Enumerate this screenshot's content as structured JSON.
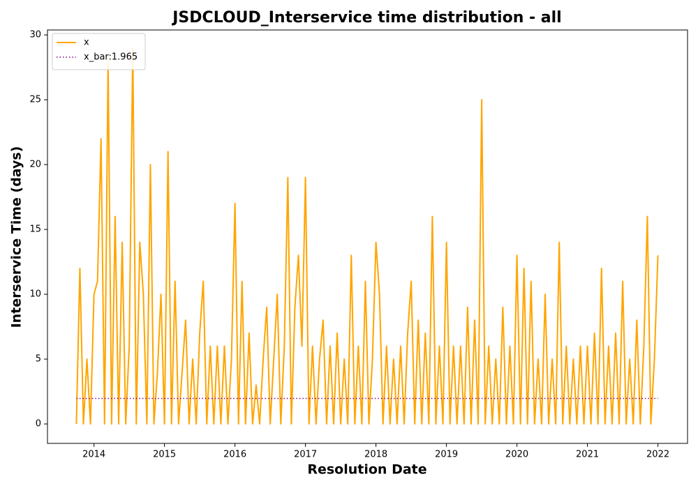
{
  "chart_data": {
    "type": "line",
    "title": "JSDCLOUD_Interservice time distribution - all",
    "x_label": "Resolution Date",
    "y_label": "Interservice Time (days)",
    "xlim": [
      2013.34,
      2022.42
    ],
    "xticks": [
      2014,
      2015,
      2016,
      2017,
      2018,
      2019,
      2020,
      2021,
      2022
    ],
    "ylim": [
      -1.5,
      30.38
    ],
    "yticks": [
      0,
      5,
      10,
      15,
      20,
      25,
      30
    ],
    "legend": "upper left",
    "series": [
      {
        "name": "x",
        "color": "#ffa500",
        "style": "solid",
        "x": [
          2013.75,
          2013.8,
          2013.85,
          2013.9,
          2013.95,
          2014.0,
          2014.05,
          2014.1,
          2014.15,
          2014.2,
          2014.25,
          2014.3,
          2014.35,
          2014.4,
          2014.45,
          2014.5,
          2014.55,
          2014.6,
          2014.65,
          2014.7,
          2014.75,
          2014.8,
          2014.85,
          2014.9,
          2014.95,
          2015.0,
          2015.05,
          2015.1,
          2015.15,
          2015.2,
          2015.25,
          2015.3,
          2015.35,
          2015.4,
          2015.45,
          2015.5,
          2015.55,
          2015.6,
          2015.65,
          2015.7,
          2015.75,
          2015.8,
          2015.85,
          2015.9,
          2015.95,
          2016.0,
          2016.05,
          2016.1,
          2016.15,
          2016.2,
          2016.25,
          2016.3,
          2016.35,
          2016.4,
          2016.45,
          2016.5,
          2016.55,
          2016.6,
          2016.65,
          2016.7,
          2016.75,
          2016.8,
          2016.85,
          2016.9,
          2016.95,
          2017.0,
          2017.05,
          2017.1,
          2017.15,
          2017.2,
          2017.25,
          2017.3,
          2017.35,
          2017.4,
          2017.45,
          2017.5,
          2017.55,
          2017.6,
          2017.65,
          2017.7,
          2017.75,
          2017.8,
          2017.85,
          2017.9,
          2017.95,
          2018.0,
          2018.05,
          2018.1,
          2018.15,
          2018.2,
          2018.25,
          2018.3,
          2018.35,
          2018.4,
          2018.45,
          2018.5,
          2018.55,
          2018.6,
          2018.65,
          2018.7,
          2018.75,
          2018.8,
          2018.85,
          2018.9,
          2018.95,
          2019.0,
          2019.05,
          2019.1,
          2019.15,
          2019.2,
          2019.25,
          2019.3,
          2019.35,
          2019.4,
          2019.45,
          2019.5,
          2019.55,
          2019.6,
          2019.65,
          2019.7,
          2019.75,
          2019.8,
          2019.85,
          2019.9,
          2019.95,
          2020.0,
          2020.05,
          2020.1,
          2020.15,
          2020.2,
          2020.25,
          2020.3,
          2020.35,
          2020.4,
          2020.45,
          2020.5,
          2020.55,
          2020.6,
          2020.65,
          2020.7,
          2020.75,
          2020.8,
          2020.85,
          2020.9,
          2020.95,
          2021.0,
          2021.05,
          2021.1,
          2021.15,
          2021.2,
          2021.25,
          2021.3,
          2021.35,
          2021.4,
          2021.45,
          2021.5,
          2021.55,
          2021.6,
          2021.65,
          2021.7,
          2021.75,
          2021.8,
          2021.85,
          2021.9,
          2021.95,
          2022.0
        ],
        "values": [
          0,
          12,
          0,
          5,
          0,
          10,
          11,
          22,
          0,
          28,
          0,
          16,
          0,
          14,
          0,
          6,
          29,
          0,
          14,
          10,
          0,
          20,
          0,
          4,
          10,
          0,
          21,
          0,
          11,
          0,
          4,
          8,
          0,
          5,
          0,
          7,
          11,
          0,
          6,
          0,
          6,
          0,
          6,
          0,
          5,
          17,
          0,
          11,
          0,
          7,
          0,
          3,
          0,
          5,
          9,
          0,
          5,
          10,
          0,
          6,
          19,
          0,
          9,
          13,
          6,
          19,
          0,
          6,
          0,
          5,
          8,
          0,
          6,
          0,
          7,
          0,
          5,
          0,
          13,
          0,
          6,
          0,
          11,
          0,
          5,
          14,
          10,
          0,
          6,
          0,
          5,
          0,
          6,
          0,
          7,
          11,
          0,
          8,
          0,
          7,
          0,
          16,
          0,
          6,
          0,
          14,
          0,
          6,
          0,
          6,
          0,
          9,
          0,
          8,
          0,
          25,
          0,
          6,
          0,
          5,
          0,
          9,
          0,
          6,
          0,
          13,
          0,
          12,
          0,
          11,
          0,
          5,
          0,
          10,
          0,
          5,
          0,
          14,
          0,
          6,
          0,
          5,
          0,
          6,
          0,
          6,
          0,
          7,
          0,
          12,
          0,
          6,
          0,
          7,
          0,
          11,
          0,
          5,
          0,
          8,
          0,
          6,
          16,
          0,
          5,
          13
        ]
      },
      {
        "name": "x_bar:1.965",
        "color": "#800080",
        "style": "dotted",
        "x": [
          2013.75,
          2022.0
        ],
        "values": [
          1.965,
          1.965
        ]
      }
    ]
  }
}
